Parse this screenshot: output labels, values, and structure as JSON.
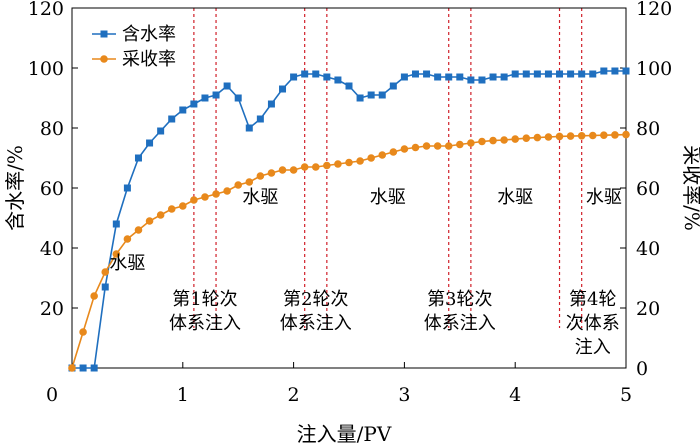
{
  "chart_data": {
    "type": "line",
    "xlabel": "注入量/PV",
    "ylabel_left": "含水率/%",
    "ylabel_right": "采收率/%",
    "xlim": [
      0,
      5
    ],
    "ylim_left": [
      0,
      120
    ],
    "ylim_right": [
      0,
      120
    ],
    "x_ticks": [
      0,
      1,
      2,
      3,
      4,
      5
    ],
    "y_ticks": [
      0,
      20,
      40,
      60,
      80,
      100,
      120
    ],
    "legend_position": "top-left",
    "series": [
      {
        "name": "含水率",
        "axis": "left",
        "color": "#1f6fbf",
        "marker": "square",
        "x": [
          0.0,
          0.1,
          0.2,
          0.3,
          0.4,
          0.5,
          0.6,
          0.7,
          0.8,
          0.9,
          1.0,
          1.1,
          1.2,
          1.3,
          1.4,
          1.5,
          1.6,
          1.7,
          1.8,
          1.9,
          2.0,
          2.1,
          2.2,
          2.3,
          2.4,
          2.5,
          2.6,
          2.7,
          2.8,
          2.9,
          3.0,
          3.1,
          3.2,
          3.3,
          3.4,
          3.5,
          3.6,
          3.7,
          3.8,
          3.9,
          4.0,
          4.1,
          4.2,
          4.3,
          4.4,
          4.5,
          4.6,
          4.7,
          4.8,
          4.9,
          5.0
        ],
        "y": [
          0,
          0,
          0,
          27,
          48,
          60,
          70,
          75,
          79,
          83,
          86,
          88,
          90,
          91,
          94,
          90,
          80,
          83,
          88,
          93,
          97,
          98,
          98,
          97,
          96,
          94,
          90,
          91,
          91,
          94,
          97,
          98,
          98,
          97,
          97,
          97,
          96,
          96,
          97,
          97,
          98,
          98,
          98,
          98,
          98,
          98,
          98,
          98,
          99,
          99,
          99
        ]
      },
      {
        "name": "采收率",
        "axis": "right",
        "color": "#e8891c",
        "marker": "circle",
        "x": [
          0.0,
          0.1,
          0.2,
          0.3,
          0.4,
          0.5,
          0.6,
          0.7,
          0.8,
          0.9,
          1.0,
          1.1,
          1.2,
          1.3,
          1.4,
          1.5,
          1.6,
          1.7,
          1.8,
          1.9,
          2.0,
          2.1,
          2.2,
          2.3,
          2.4,
          2.5,
          2.6,
          2.7,
          2.8,
          2.9,
          3.0,
          3.1,
          3.2,
          3.3,
          3.4,
          3.5,
          3.6,
          3.7,
          3.8,
          3.9,
          4.0,
          4.1,
          4.2,
          4.3,
          4.4,
          4.5,
          4.6,
          4.7,
          4.8,
          4.9,
          5.0
        ],
        "y": [
          0,
          12,
          24,
          32,
          38,
          43,
          46,
          49,
          51,
          53,
          54,
          56,
          57,
          58,
          59,
          61,
          62,
          64,
          65,
          66,
          66,
          67,
          67,
          67.5,
          68,
          68.5,
          69,
          70,
          71,
          72,
          73,
          73.5,
          74,
          74,
          74,
          74.5,
          75,
          75.5,
          75.8,
          76,
          76.3,
          76.6,
          76.8,
          77,
          77.2,
          77.3,
          77.4,
          77.5,
          77.6,
          77.7,
          77.8
        ]
      }
    ],
    "vlines": [
      1.1,
      1.3,
      2.1,
      2.3,
      3.4,
      3.6,
      4.4,
      4.6
    ],
    "annotations": [
      {
        "lines": [
          "水驱"
        ],
        "x": 0.5,
        "y_left": 33
      },
      {
        "lines": [
          "水驱"
        ],
        "x": 1.7,
        "y_left": 55
      },
      {
        "lines": [
          "水驱"
        ],
        "x": 2.85,
        "y_left": 55
      },
      {
        "lines": [
          "水驱"
        ],
        "x": 4.0,
        "y_left": 55
      },
      {
        "lines": [
          "水驱"
        ],
        "x": 4.8,
        "y_left": 55
      },
      {
        "lines": [
          "第1轮次",
          "体系注入"
        ],
        "x": 1.2,
        "y_left": 21
      },
      {
        "lines": [
          "第2轮次",
          "体系注入"
        ],
        "x": 2.2,
        "y_left": 21
      },
      {
        "lines": [
          "第3轮次",
          "体系注入"
        ],
        "x": 3.5,
        "y_left": 21
      },
      {
        "lines": [
          "第4轮",
          "次体系",
          "注入"
        ],
        "x": 4.7,
        "y_left": 21
      }
    ]
  }
}
